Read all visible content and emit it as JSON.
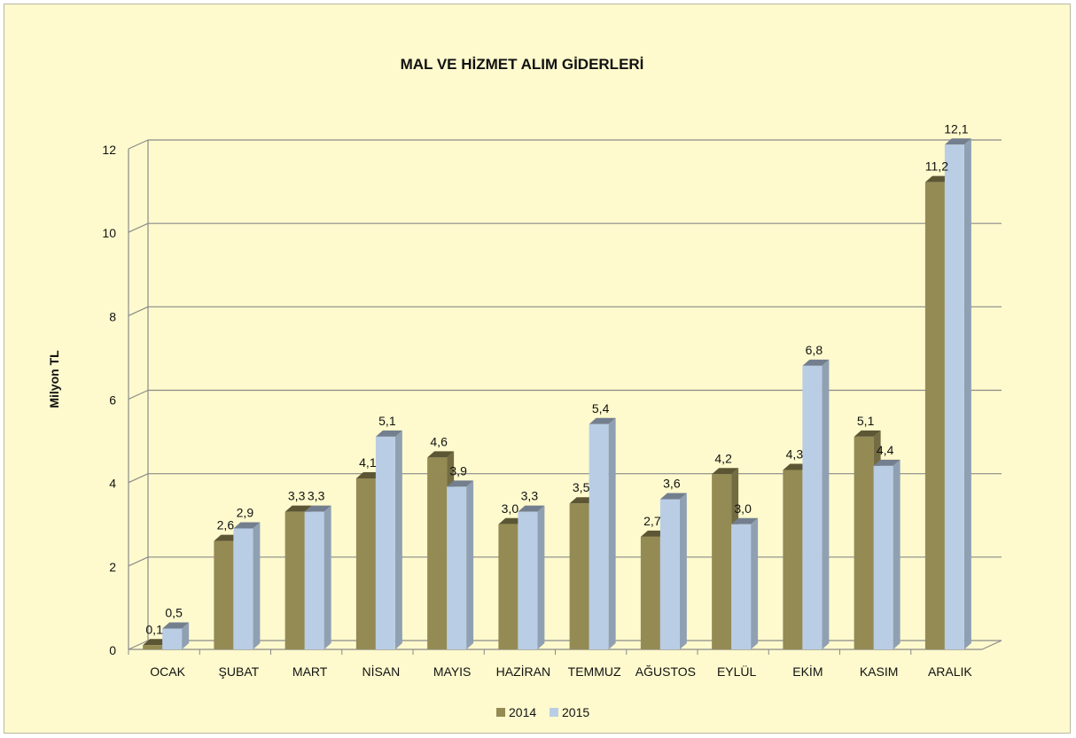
{
  "chart_data": {
    "type": "bar",
    "title": "MAL VE HİZMET ALIM GİDERLERİ",
    "xlabel": "",
    "ylabel": "Milyon TL",
    "ylim": [
      0,
      12
    ],
    "yticks": [
      "0",
      "2",
      "4",
      "6",
      "8",
      "10",
      "12"
    ],
    "grid": true,
    "legend_position": "bottom",
    "categories": [
      "OCAK",
      "ŞUBAT",
      "MART",
      "NİSAN",
      "MAYIS",
      "HAZİRAN",
      "TEMMUZ",
      "AĞUSTOS",
      "EYLÜL",
      "EKİM",
      "KASIM",
      "ARALIK"
    ],
    "series": [
      {
        "name": "2014",
        "color": "#948a54",
        "values": [
          0.1,
          2.6,
          3.3,
          4.1,
          4.6,
          3.0,
          3.5,
          2.7,
          4.2,
          4.3,
          5.1,
          11.2
        ],
        "labels": [
          "0,1",
          "2,6",
          "3,3",
          "4,1",
          "4,6",
          "3,0",
          "3,5",
          "2,7",
          "4,2",
          "4,3",
          "5,1",
          "11,2"
        ]
      },
      {
        "name": "2015",
        "color": "#b9cde5",
        "values": [
          0.5,
          2.9,
          3.3,
          5.1,
          3.9,
          3.3,
          5.4,
          3.6,
          3.0,
          6.8,
          4.4,
          12.1
        ],
        "labels": [
          "0,5",
          "2,9",
          "3,3",
          "5,1",
          "3,9",
          "3,3",
          "5,4",
          "3,6",
          "3,0",
          "6,8",
          "4,4",
          "12,1"
        ]
      }
    ]
  }
}
